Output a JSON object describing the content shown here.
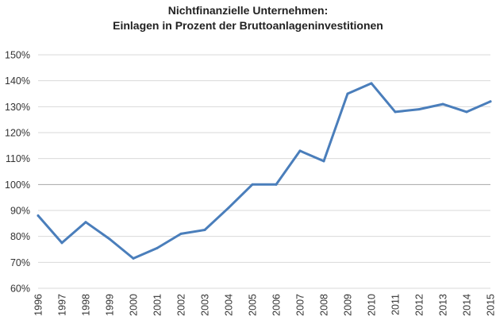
{
  "chart_data": {
    "type": "line",
    "title_line1": "Nichtfinanzielle Unternehmen:",
    "title_line2": "Einlagen in Prozent der Bruttoanlageninvestitionen",
    "xlabel": "",
    "ylabel": "",
    "ylim": [
      60,
      150
    ],
    "y_ticks": [
      60,
      70,
      80,
      90,
      100,
      110,
      120,
      130,
      140,
      150
    ],
    "y_tick_labels": [
      "60%",
      "70%",
      "80%",
      "90%",
      "100%",
      "110%",
      "120%",
      "130%",
      "140%",
      "150%"
    ],
    "reference_line": 100,
    "categories": [
      "1996",
      "1997",
      "1998",
      "1999",
      "2000",
      "2001",
      "2002",
      "2003",
      "2004",
      "2005",
      "2006",
      "2007",
      "2008",
      "2009",
      "2010",
      "2011",
      "2012",
      "2013",
      "2014",
      "2015"
    ],
    "series": [
      {
        "values": [
          88,
          77.5,
          85.5,
          79,
          71.5,
          75.5,
          81,
          82.5,
          91,
          100,
          100,
          113,
          109,
          135,
          139,
          128,
          129,
          131,
          128,
          132
        ]
      }
    ],
    "grid": true,
    "colors": {
      "line": "#4a7ebb",
      "grid": "#d9d9d9",
      "reference": "#a6a6a6"
    }
  }
}
